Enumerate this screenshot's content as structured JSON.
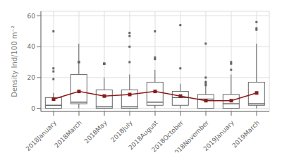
{
  "chart_data": {
    "type": "boxplot",
    "categories": [
      "2018January",
      "2018March",
      "2018May",
      "2018July",
      "2018August",
      "2018October",
      "2018November",
      "2019January",
      "2019March"
    ],
    "ylabel": "Density Ind/100 m⁻²",
    "ylim": [
      -2,
      63
    ],
    "yticks": [
      0,
      20,
      40,
      60
    ],
    "grid": true,
    "series": [
      {
        "type": "boxplot",
        "color": "#666666",
        "values": [
          {
            "q1": 0,
            "median": 2,
            "q3": 7,
            "whisker_low": 0,
            "whisker_high": 10,
            "outliers": [
              19,
              24,
              26,
              50
            ]
          },
          {
            "q1": 3,
            "median": 4,
            "q3": 22,
            "whisker_low": 0,
            "whisker_high": 42,
            "outliers": [
              30,
              30,
              30,
              30,
              30
            ]
          },
          {
            "q1": 0,
            "median": 1,
            "q3": 12,
            "whisker_low": 0,
            "whisker_high": 20,
            "outliers": [
              29,
              29,
              29,
              29,
              29
            ]
          },
          {
            "q1": 0,
            "median": 1,
            "q3": 12,
            "whisker_low": 0,
            "whisker_high": 22,
            "outliers": [
              30,
              40,
              47,
              49
            ]
          },
          {
            "q1": 2,
            "median": 4,
            "q3": 17,
            "whisker_low": 0,
            "whisker_high": 25,
            "outliers": [
              32,
              33,
              50
            ]
          },
          {
            "q1": 2,
            "median": 7,
            "q3": 11,
            "whisker_low": 0,
            "whisker_high": 16,
            "outliers": [
              26,
              54
            ]
          },
          {
            "q1": 0,
            "median": 6,
            "q3": 9,
            "whisker_low": 0,
            "whisker_high": 18,
            "outliers": [
              15,
              16,
              17,
              20,
              42
            ]
          },
          {
            "q1": 0,
            "median": 3,
            "q3": 9,
            "whisker_low": 0,
            "whisker_high": 22,
            "outliers": [
              25,
              29,
              30
            ]
          },
          {
            "q1": 2,
            "median": 3,
            "q3": 17,
            "whisker_low": 0,
            "whisker_high": 42,
            "outliers": [
              51,
              52,
              56
            ]
          }
        ]
      },
      {
        "type": "line",
        "color": "#8b1a1a",
        "marker": "square",
        "values": [
          6,
          11,
          8,
          9,
          11,
          8,
          5,
          5,
          10
        ]
      }
    ]
  }
}
